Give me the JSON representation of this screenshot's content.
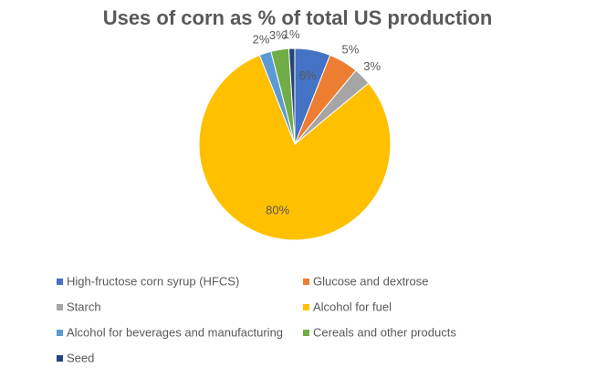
{
  "chart_data": {
    "type": "pie",
    "title": "Uses of corn as % of total US production",
    "categories": [
      "High-fructose corn syrup (HFCS)",
      "Glucose and dextrose",
      "Starch",
      "Alcohol for fuel",
      "Alcohol for beverages and manufacturing",
      "Cereals and other products",
      "Seed"
    ],
    "values": [
      6,
      5,
      3,
      80,
      2,
      3,
      1
    ],
    "value_labels": [
      "6%",
      "5%",
      "3%",
      "80%",
      "2%",
      "3%",
      "1%"
    ],
    "colors": [
      "#4472c4",
      "#ed7d31",
      "#a5a5a5",
      "#ffc000",
      "#5b9bd5",
      "#70ad47",
      "#264478"
    ],
    "legend": "bottom"
  }
}
